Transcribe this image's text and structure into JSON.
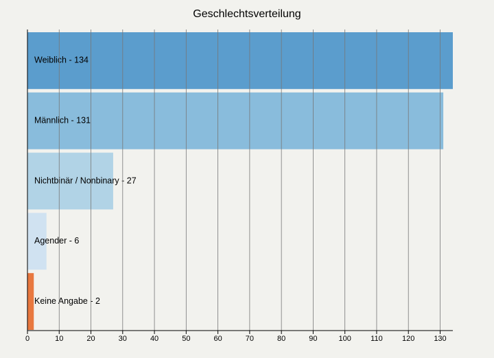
{
  "chart_data": {
    "type": "hbar",
    "title": "Geschlechtsverteilung",
    "categories": [
      "Weiblich - 134",
      "Männlich - 131",
      "Nichtbinär / Nonbinary - 27",
      "Agender - 6",
      "Keine Angabe - 2"
    ],
    "values": [
      134,
      131,
      27,
      6,
      2
    ],
    "colors": [
      "#5b9dcd",
      "#89bcdc",
      "#b1d3e6",
      "#d0e2f1",
      "#e8783f"
    ],
    "xlim": [
      0,
      134
    ],
    "xticks": [
      0,
      10,
      20,
      30,
      40,
      50,
      60,
      70,
      80,
      90,
      100,
      110,
      120,
      130
    ],
    "grid": true
  }
}
